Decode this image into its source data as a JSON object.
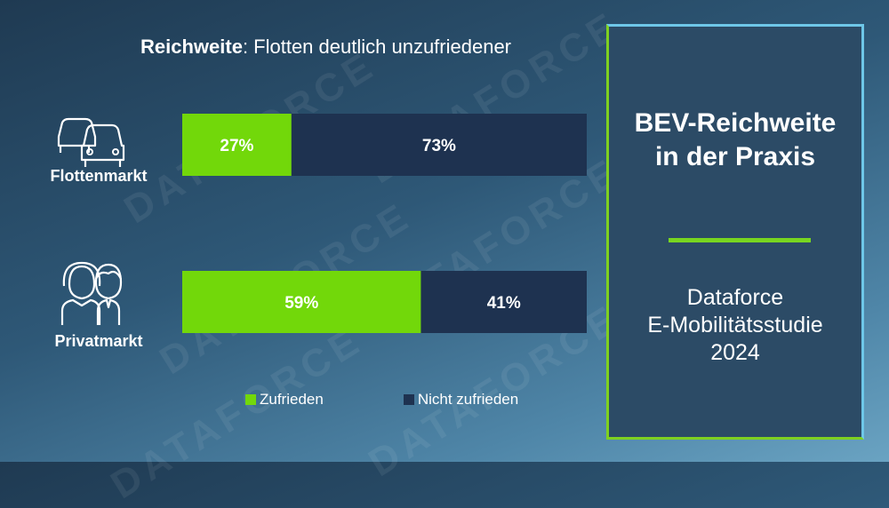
{
  "chart_data": {
    "type": "bar",
    "orientation": "horizontal",
    "stacked": true,
    "title_bold": "Reichweite",
    "title_rest": ": Flotten deutlich unzufriedener",
    "categories": [
      "Flottenmarkt",
      "Privatmarkt"
    ],
    "series": [
      {
        "name": "Zufrieden",
        "values": [
          27,
          59
        ],
        "labels": [
          "27%",
          "59%"
        ],
        "color": "#72d80a"
      },
      {
        "name": "Nicht zufrieden",
        "values": [
          73,
          41
        ],
        "labels": [
          "73%",
          "41%"
        ],
        "color": "#1e3250"
      }
    ],
    "xlim": [
      0,
      100
    ],
    "grid": false,
    "legend_position": "bottom",
    "icons": [
      "cars-icon",
      "people-icon"
    ]
  },
  "watermark": "DATAFORCE",
  "panel": {
    "heading": "BEV-Reichweite in der Praxis",
    "subheading_lines": [
      "Dataforce",
      "E-Mobilitätsstudie",
      "2024"
    ],
    "accent_color": "#78d620",
    "border_color": "#6ec7e8"
  }
}
